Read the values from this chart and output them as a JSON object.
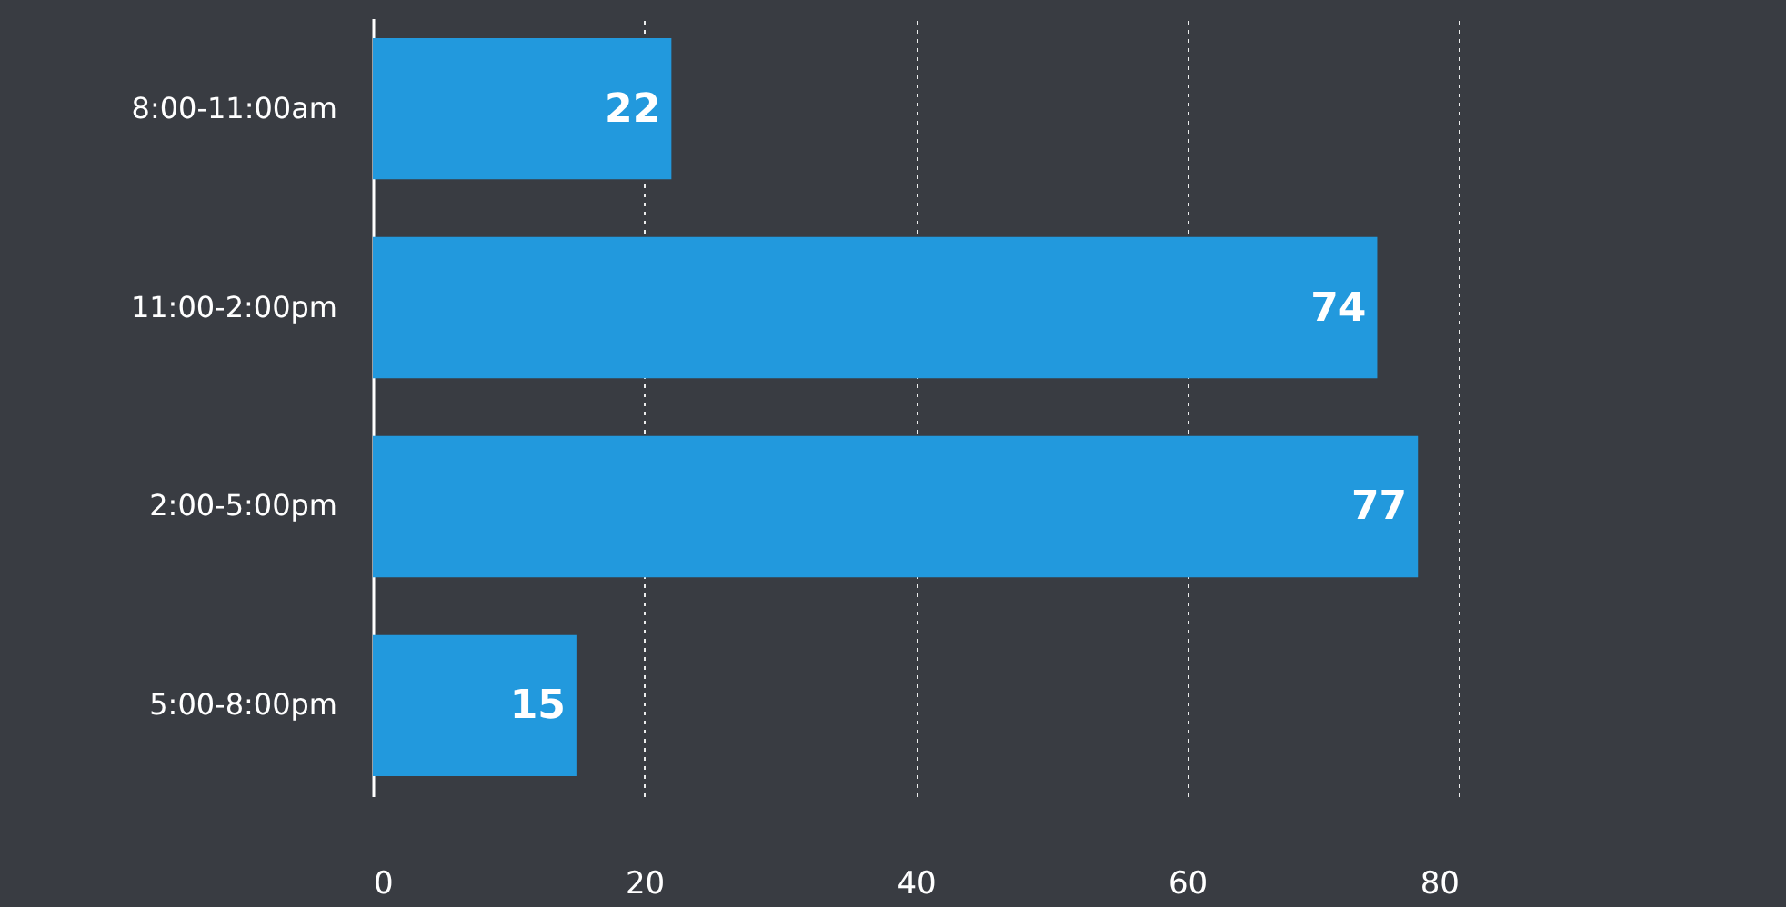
{
  "chart_data": {
    "type": "bar",
    "orientation": "horizontal",
    "categories": [
      "8:00-11:00am",
      "11:00-2:00pm",
      "2:00-5:00pm",
      "5:00-8:00pm"
    ],
    "values": [
      22,
      74,
      77,
      15
    ],
    "color": "#2299dd",
    "xlim": [
      0,
      80
    ],
    "xticks": [
      0,
      20,
      40,
      60,
      80
    ],
    "grid": "x",
    "data_labels": true
  }
}
